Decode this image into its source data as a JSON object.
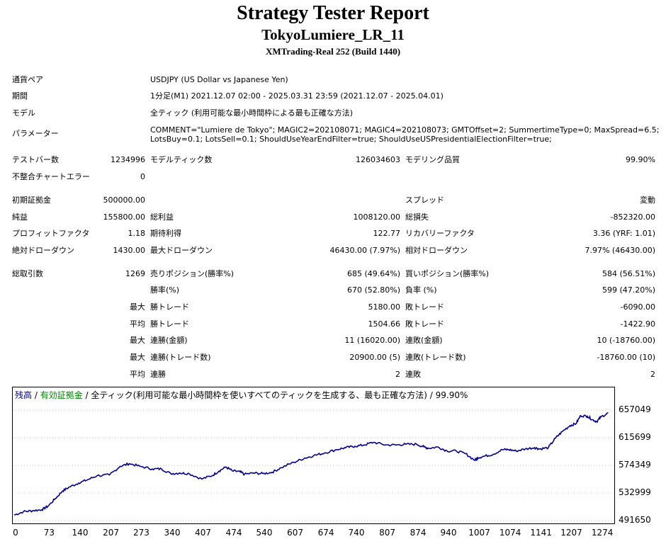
{
  "title": "Strategy Tester Report",
  "ea_name": "TokyoLumiere_LR_11",
  "server": "XMTrading-Real 252 (Build 1440)",
  "info": [
    {
      "label": "通貨ペア",
      "value": "USDJPY (US Dollar vs Japanese Yen)"
    },
    {
      "label": "期間",
      "value": "1分足(M1) 2021.12.07 02:00 - 2025.03.31 23:59 (2021.12.07 - 2025.04.01)"
    },
    {
      "label": "モデル",
      "value": "全ティック (利用可能な最小時間枠による最も正確な方法)"
    },
    {
      "label": "パラメーター",
      "value": "COMMENT=\"Lumiere de Tokyo\"; MAGIC2=202108071; MAGIC4=202108073; GMTOffset=2; SummertimeType=0; MaxSpread=6.5;",
      "value2": "LotsBuy=0.1; LotsSell=0.1; ShouldUseYearEndFilter=true; ShouldUseUSPresidentialElectionFilter=true;"
    }
  ],
  "stats": {
    "test_bars_label": "テストバー数",
    "test_bars": "1234996",
    "model_ticks_label": "モデルティック数",
    "model_ticks": "126034603",
    "model_quality_label": "モデリング品質",
    "model_quality": "99.90%",
    "mismatch_label": "不整合チャートエラー",
    "mismatch": "0",
    "initial_deposit_label": "初期証拠金",
    "initial_deposit": "500000.00",
    "spread_label": "スプレッド",
    "spread": "変動",
    "net_profit_label": "純益",
    "net_profit": "155800.00",
    "gross_profit_label": "総利益",
    "gross_profit": "1008120.00",
    "gross_loss_label": "総損失",
    "gross_loss": "-852320.00",
    "profit_factor_label": "プロフィットファクタ",
    "profit_factor": "1.18",
    "expected_payoff_label": "期待利得",
    "expected_payoff": "122.77",
    "recovery_factor_label": "リカバリーファクタ",
    "recovery_factor": "3.36 (YRF: 1.01)",
    "abs_dd_label": "絶対ドローダウン",
    "abs_dd": "1430.00",
    "max_dd_label": "最大ドローダウン",
    "max_dd": "46430.00 (7.97%)",
    "rel_dd_label": "相対ドローダウン",
    "rel_dd": "7.97% (46430.00)",
    "total_trades_label": "総取引数",
    "total_trades": "1269",
    "short_label": "売りポジション(勝率%)",
    "short": "685 (49.64%)",
    "long_label": "買いポジション(勝率%)",
    "long": "584 (56.51%)",
    "win_rate_label": "勝率(%)",
    "win_rate": "670 (52.80%)",
    "loss_rate_label": "負率 (%)",
    "loss_rate": "599 (47.20%)",
    "max_label": "最大",
    "avg_label": "平均",
    "max_win_label": "勝トレード",
    "max_win": "5180.00",
    "max_loss_label": "敗トレード",
    "max_loss": "-6090.00",
    "avg_win_label": "勝トレード",
    "avg_win": "1504.66",
    "avg_loss_label": "敗トレード",
    "avg_loss": "-1422.90",
    "max_consec_win_amt_label": "連勝(金額)",
    "max_consec_win_amt": "11 (16020.00)",
    "max_consec_loss_amt_label": "連敗(金額)",
    "max_consec_loss_amt": "10 (-18760.00)",
    "max_consec_win_cnt_label": "連勝(トレード数)",
    "max_consec_win_cnt": "20900.00 (5)",
    "max_consec_loss_cnt_label": "連敗(トレード数)",
    "max_consec_loss_cnt": "-18760.00 (10)",
    "avg_consec_win_label": "連勝",
    "avg_consec_win": "2",
    "avg_consec_loss_label": "連敗",
    "avg_consec_loss": "2"
  },
  "legend": {
    "balance": "残高",
    "sep1": " / ",
    "equity": "有効証拠金",
    "rest": " / 全ティック(利用可能な最小時間枠を使いすべてのティックを生成する、最も正確な方法) / 99.90%"
  },
  "colors": {
    "balance_line": "#00008b",
    "equity_legend": "#008000"
  },
  "chart_data": {
    "type": "line",
    "ylim": [
      491650,
      670000
    ],
    "xlim": [
      0,
      1300
    ],
    "yticks": [
      "657049",
      "615699",
      "574349",
      "532999",
      "491650"
    ],
    "xticks": [
      "0",
      "73",
      "140",
      "207",
      "273",
      "340",
      "407",
      "474",
      "540",
      "607",
      "674",
      "740",
      "807",
      "874",
      "940",
      "1007",
      "1074",
      "1141",
      "1207",
      "1274"
    ],
    "series": [
      {
        "name": "残高",
        "points": [
          [
            0,
            500000
          ],
          [
            20,
            505000
          ],
          [
            40,
            506500
          ],
          [
            60,
            508000
          ],
          [
            73,
            513000
          ],
          [
            90,
            525000
          ],
          [
            105,
            536000
          ],
          [
            120,
            542000
          ],
          [
            140,
            548000
          ],
          [
            160,
            553000
          ],
          [
            180,
            559000
          ],
          [
            207,
            560000
          ],
          [
            230,
            573000
          ],
          [
            250,
            577000
          ],
          [
            273,
            573000
          ],
          [
            300,
            569000
          ],
          [
            320,
            569000
          ],
          [
            340,
            562000
          ],
          [
            360,
            563000
          ],
          [
            380,
            562000
          ],
          [
            407,
            554000
          ],
          [
            430,
            559000
          ],
          [
            445,
            566000
          ],
          [
            460,
            572000
          ],
          [
            474,
            566000
          ],
          [
            490,
            565000
          ],
          [
            500,
            561000
          ],
          [
            520,
            563000
          ],
          [
            540,
            562000
          ],
          [
            560,
            564000
          ],
          [
            580,
            571000
          ],
          [
            607,
            579000
          ],
          [
            630,
            585000
          ],
          [
            650,
            589000
          ],
          [
            674,
            593000
          ],
          [
            700,
            598000
          ],
          [
            720,
            601000
          ],
          [
            740,
            603000
          ],
          [
            760,
            605000
          ],
          [
            780,
            609000
          ],
          [
            807,
            605000
          ],
          [
            830,
            605000
          ],
          [
            850,
            606000
          ],
          [
            874,
            606000
          ],
          [
            890,
            602000
          ],
          [
            900,
            600000
          ],
          [
            920,
            602000
          ],
          [
            940,
            596000
          ],
          [
            960,
            596000
          ],
          [
            980,
            592000
          ],
          [
            1000,
            582000
          ],
          [
            1007,
            586000
          ],
          [
            1020,
            588000
          ],
          [
            1040,
            591000
          ],
          [
            1060,
            598000
          ],
          [
            1074,
            598000
          ],
          [
            1090,
            596000
          ],
          [
            1110,
            599000
          ],
          [
            1130,
            601000
          ],
          [
            1141,
            599000
          ],
          [
            1160,
            601000
          ],
          [
            1175,
            615000
          ],
          [
            1190,
            625000
          ],
          [
            1207,
            634000
          ],
          [
            1220,
            637000
          ],
          [
            1230,
            649000
          ],
          [
            1245,
            648000
          ],
          [
            1255,
            643000
          ],
          [
            1265,
            640000
          ],
          [
            1274,
            647000
          ],
          [
            1290,
            653000
          ]
        ]
      }
    ]
  }
}
